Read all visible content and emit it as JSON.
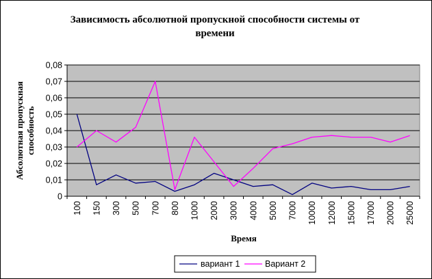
{
  "chart_data": {
    "type": "line",
    "title_lines": [
      "Зависимость абсолютной пропускной способности системы от",
      "времени"
    ],
    "xlabel": "Время",
    "ylabel_lines": [
      "Абсолютная пропускная",
      "способность"
    ],
    "categories": [
      "100",
      "150",
      "300",
      "500",
      "700",
      "800",
      "1000",
      "2000",
      "3000",
      "4000",
      "5000",
      "7000",
      "10000",
      "12000",
      "15000",
      "17000",
      "20000",
      "25000"
    ],
    "ylim": [
      0,
      0.08
    ],
    "y_ticks": [
      0,
      0.01,
      0.02,
      0.03,
      0.04,
      0.05,
      0.06,
      0.07,
      0.08
    ],
    "y_tick_labels": [
      "0",
      "0,01",
      "0,02",
      "0,03",
      "0,04",
      "0,05",
      "0,06",
      "0,07",
      "0,08"
    ],
    "grid": true,
    "legend_position": "bottom",
    "series": [
      {
        "name": "вариант 1",
        "color": "#000080",
        "values": [
          0.05,
          0.007,
          0.013,
          0.008,
          0.009,
          0.003,
          0.007,
          0.014,
          0.01,
          0.006,
          0.007,
          0.001,
          0.008,
          0.005,
          0.006,
          0.004,
          0.004,
          0.006
        ]
      },
      {
        "name": "Вариант 2",
        "color": "#FF00FF",
        "values": [
          0.03,
          0.04,
          0.033,
          0.042,
          0.07,
          0.004,
          0.036,
          0.021,
          0.006,
          0.017,
          0.029,
          0.032,
          0.036,
          0.037,
          0.036,
          0.036,
          0.033,
          0.037
        ]
      }
    ],
    "colors": {
      "plot_background": "#C0C0C0",
      "gridline": "#000000"
    }
  }
}
